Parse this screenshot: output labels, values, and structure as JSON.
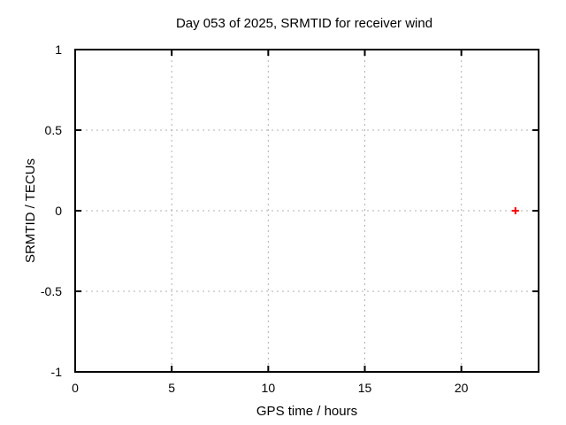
{
  "title": "Day 053 of 2025, SRMTID for receiver wind",
  "chart_data": {
    "type": "scatter",
    "title": "Day 053 of 2025, SRMTID for receiver wind",
    "xlabel": "GPS time / hours",
    "ylabel": "SRMTID / TECUs",
    "xlim": [
      0,
      24
    ],
    "ylim": [
      -1,
      1
    ],
    "xticks": [
      0,
      5,
      10,
      15,
      20
    ],
    "yticks": [
      -1,
      -0.5,
      0,
      0.5,
      1
    ],
    "grid": true,
    "legend_position": "none",
    "series": [
      {
        "name": "SRMTID",
        "marker": "plus",
        "color": "#ff0000",
        "points": [
          {
            "x": 22.8,
            "y": 0.0
          }
        ]
      }
    ]
  },
  "colors": {
    "background": "#ffffff",
    "axis": "#000000",
    "grid": "#b0b0b0",
    "text": "#000000",
    "marker": "#ff0000"
  }
}
